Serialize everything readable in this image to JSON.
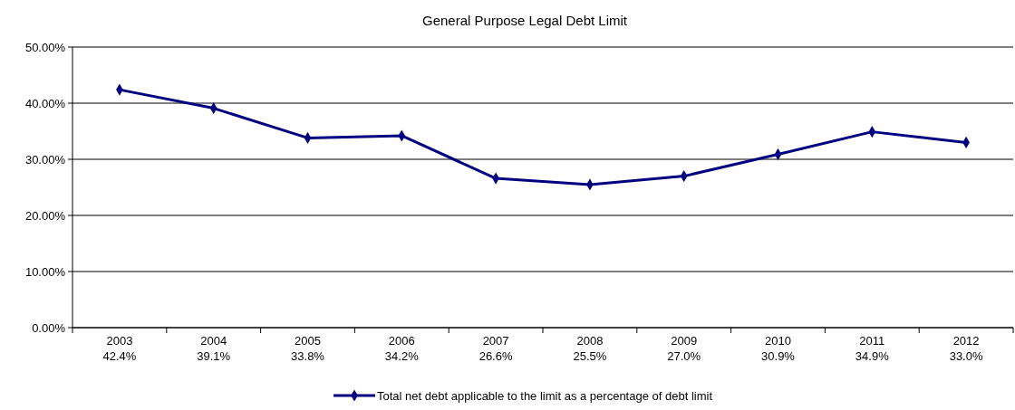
{
  "chart_data": {
    "type": "line",
    "title": "General Purpose Legal Debt Limit",
    "categories": [
      "2003",
      "2004",
      "2005",
      "2006",
      "2007",
      "2008",
      "2009",
      "2010",
      "2011",
      "2012"
    ],
    "series": [
      {
        "name": "Total net debt applicable to the limit as a percentage of debt limit",
        "color": "#000080",
        "values": [
          42.4,
          39.1,
          33.8,
          34.2,
          26.6,
          25.5,
          27.0,
          30.9,
          34.9,
          33.0
        ],
        "value_labels": [
          "42.4%",
          "39.1%",
          "33.8%",
          "34.2%",
          "26.6%",
          "25.5%",
          "27.0%",
          "30.9%",
          "34.9%",
          "33.0%"
        ]
      }
    ],
    "ylim": [
      0,
      50
    ],
    "yticks": [
      {
        "value": 0,
        "label": "0.00%"
      },
      {
        "value": 10,
        "label": "10.00%"
      },
      {
        "value": 20,
        "label": "20.00%"
      },
      {
        "value": 30,
        "label": "30.00%"
      },
      {
        "value": 40,
        "label": "40.00%"
      },
      {
        "value": 50,
        "label": "50.00%"
      }
    ],
    "grid": "y",
    "legend": "bottom",
    "marker": "diamond",
    "line_style": "solid"
  }
}
